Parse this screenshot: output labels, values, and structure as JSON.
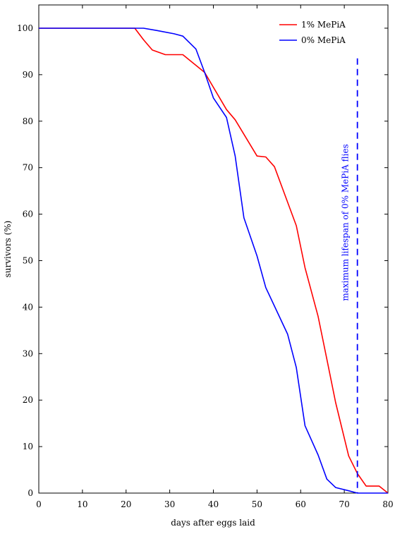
{
  "chart_data": {
    "type": "line",
    "title": "",
    "xlabel": "days after eggs laid",
    "ylabel": "survivors (%)",
    "xlim": [
      0,
      80
    ],
    "ylim": [
      0,
      105
    ],
    "xticks": [
      "0",
      "10",
      "20",
      "30",
      "40",
      "50",
      "60",
      "70",
      "80"
    ],
    "yticks": [
      "0",
      "10",
      "20",
      "30",
      "40",
      "50",
      "60",
      "70",
      "80",
      "90",
      "100"
    ],
    "grid": false,
    "legend": "top-right",
    "series": [
      {
        "name": "1% MePiA",
        "color": "#ff0000",
        "x": [
          0,
          22,
          24,
          26,
          29,
          33,
          38,
          43,
          45,
          50,
          52,
          54,
          59,
          61,
          64,
          66,
          68,
          71,
          73,
          75,
          78,
          80
        ],
        "y": [
          100,
          100,
          97.5,
          95.3,
          94.3,
          94.3,
          90.5,
          82.5,
          80.3,
          72.5,
          72.3,
          70.2,
          57.5,
          48.5,
          38,
          28.8,
          19.5,
          8,
          4.2,
          1.5,
          1.5,
          0
        ]
      },
      {
        "name": "0% MePiA",
        "color": "#0000ff",
        "x": [
          0,
          24,
          27,
          31,
          33,
          36,
          38,
          40,
          43,
          45,
          47,
          50,
          52,
          57,
          59,
          61,
          64,
          66,
          68,
          71,
          73,
          80
        ],
        "y": [
          100,
          100,
          99.5,
          98.8,
          98.3,
          95.5,
          90.5,
          85,
          80.8,
          72.5,
          59.2,
          51,
          44.2,
          34.2,
          27,
          14.5,
          8.2,
          3,
          1.2,
          0.5,
          0,
          0
        ]
      }
    ],
    "annotations": [
      {
        "text": "maximum lifespan of 0% MePiA flies",
        "x": 73,
        "y_range": [
          0,
          93.5
        ],
        "color": "#0000ff",
        "style": "dashed"
      }
    ]
  }
}
